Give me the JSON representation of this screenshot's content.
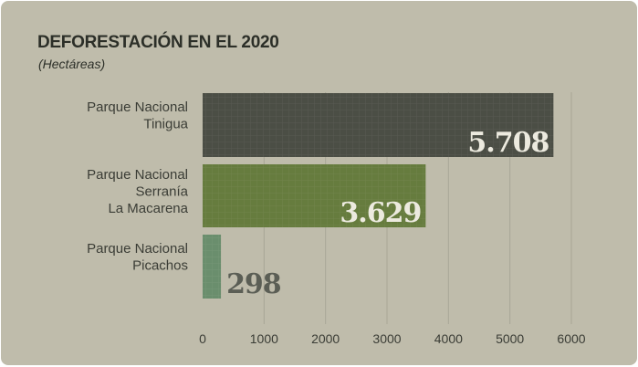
{
  "header": {
    "title": "DEFORESTACIÓN EN EL 2020",
    "subtitle": "(Hectáreas)"
  },
  "colors": {
    "background": "#bfbcab",
    "gridline": "#a9a696",
    "text": "#3b3d36",
    "label_light": "#eceadf",
    "label_dark": "#5b5e55",
    "bars": [
      "#4b4e45",
      "#667c3e",
      "#6a8e6d"
    ]
  },
  "chart_data": {
    "type": "bar",
    "orientation": "horizontal",
    "title": "DEFORESTACIÓN EN EL 2020",
    "subtitle": "(Hectáreas)",
    "categories": [
      [
        "Parque Nacional",
        "Tinigua"
      ],
      [
        "Parque Nacional",
        "Serranía",
        "La Macarena"
      ],
      [
        "Parque Nacional",
        "Picachos"
      ]
    ],
    "values": [
      5708,
      3629,
      298
    ],
    "value_labels": [
      "5.708",
      "3.629",
      "298"
    ],
    "xlim": [
      0,
      6000
    ],
    "xticks": [
      0,
      1000,
      2000,
      3000,
      4000,
      5000,
      6000
    ],
    "xtick_labels": [
      "0",
      "1000",
      "2000",
      "3000",
      "4000",
      "5000",
      "6000"
    ],
    "grid": "vertical",
    "legend": "none"
  }
}
